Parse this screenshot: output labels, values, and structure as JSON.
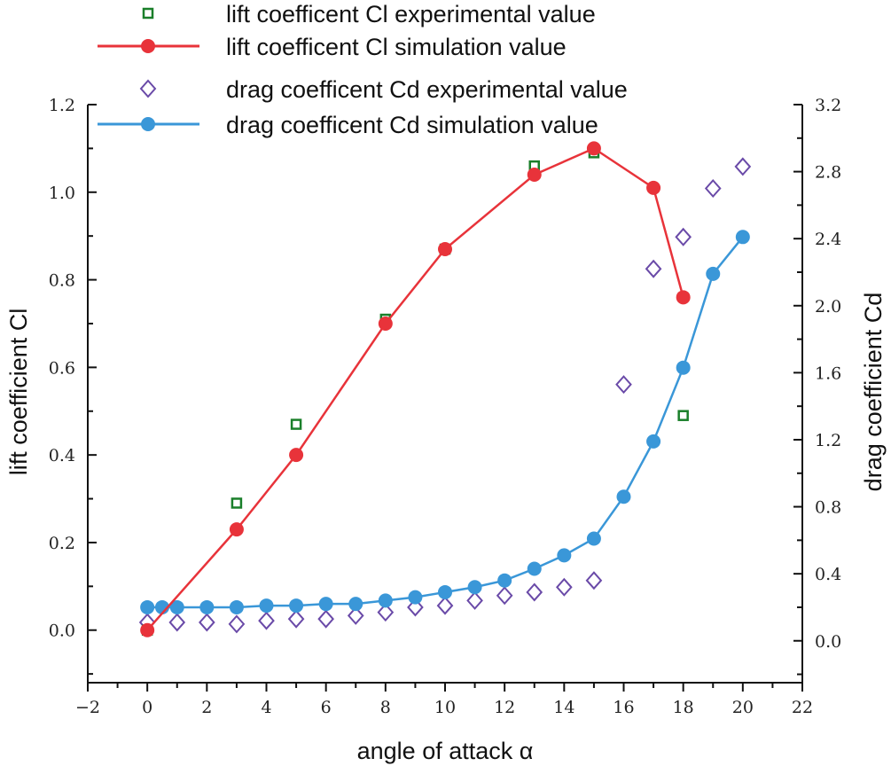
{
  "chart_data": {
    "type": "line",
    "xlabel": "angle of attack α",
    "ylabel_left": "lift coefficient Cl",
    "ylabel_right": "drag coefficient Cd",
    "xlim": [
      -2,
      22
    ],
    "ylim_left": [
      -0.12,
      1.2
    ],
    "ylim_right": [
      -0.25,
      3.2
    ],
    "x_ticks": [
      "−2",
      "0",
      "2",
      "4",
      "6",
      "8",
      "10",
      "12",
      "14",
      "16",
      "18",
      "20",
      "22"
    ],
    "y_left_ticks": [
      "0.0",
      "0.2",
      "0.4",
      "0.6",
      "0.8",
      "1.0",
      "1.2"
    ],
    "y_right_ticks": [
      "0.0",
      "0.4",
      "0.8",
      "1.2",
      "1.6",
      "2.0",
      "2.4",
      "2.8",
      "3.2"
    ],
    "grid": false,
    "legend_placement": "top",
    "series": [
      {
        "name": "lift coefficent Cl experimental value",
        "axis": "left",
        "marker": "square-open",
        "line": false,
        "color": "#1a7f2a",
        "x": [
          0,
          3,
          5,
          8,
          10,
          13,
          15,
          18
        ],
        "y": [
          0.0,
          0.29,
          0.47,
          0.71,
          0.87,
          1.06,
          1.09,
          0.49
        ]
      },
      {
        "name": "lift coefficent Cl simulation value",
        "axis": "left",
        "marker": "circle",
        "line": true,
        "color": "#e8333a",
        "x": [
          0,
          3,
          5,
          8,
          10,
          13,
          15,
          17,
          18
        ],
        "y": [
          0.0,
          0.23,
          0.4,
          0.7,
          0.87,
          1.04,
          1.1,
          1.01,
          0.76
        ]
      },
      {
        "name": "drag coefficent Cd experimental value",
        "axis": "right",
        "marker": "diamond-open",
        "line": false,
        "color": "#6a4aa8",
        "x": [
          0,
          1,
          2,
          3,
          4,
          5,
          6,
          7,
          8,
          9,
          10,
          11,
          12,
          13,
          14,
          15,
          16,
          17,
          18,
          19,
          20
        ],
        "y": [
          0.11,
          0.11,
          0.11,
          0.1,
          0.12,
          0.13,
          0.13,
          0.15,
          0.17,
          0.2,
          0.21,
          0.24,
          0.27,
          0.29,
          0.32,
          0.36,
          1.53,
          2.22,
          2.41,
          2.7,
          2.83
        ]
      },
      {
        "name": "drag coefficent Cd simulation value",
        "axis": "right",
        "marker": "circle",
        "line": true,
        "color": "#3a97d8",
        "x": [
          0,
          0.5,
          1,
          2,
          3,
          4,
          5,
          6,
          7,
          8,
          9,
          10,
          11,
          12,
          13,
          14,
          15,
          16,
          17,
          18,
          19,
          20
        ],
        "y": [
          0.2,
          0.2,
          0.2,
          0.2,
          0.2,
          0.21,
          0.21,
          0.22,
          0.22,
          0.24,
          0.26,
          0.29,
          0.32,
          0.36,
          0.43,
          0.51,
          0.61,
          0.86,
          1.19,
          1.63,
          2.19,
          2.41
        ]
      }
    ]
  }
}
